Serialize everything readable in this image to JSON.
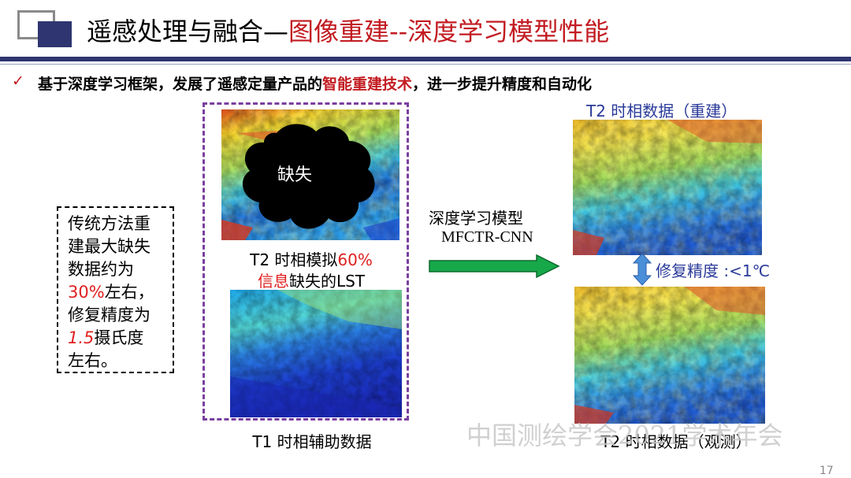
{
  "header": {
    "title_part1": "遥感处理与融合—",
    "title_part2": "图像重建--深度学习模型性能",
    "accent_color": "#c21b21",
    "bar_color": "#2e3570"
  },
  "bullet": {
    "check_icon": "checkmark-icon",
    "text_before": "基于深度学习框架，发展了遥感定量产品的",
    "text_highlight": "智能重建技术",
    "text_after": "，进一步提升精度和自动化"
  },
  "note": {
    "line1": "传统方法重",
    "line2": "建最大缺失",
    "line3": "数据约为",
    "line4_red": "30%",
    "line4_rest": "左右，",
    "line5": "修复精度为",
    "line6_red": "1.5",
    "line6_rest": "摄氏度",
    "line7": "左右。"
  },
  "left_group": {
    "missing_label": "缺失",
    "cap1_part1": "T2 时相模拟",
    "cap1_red": "60%",
    "cap2_red": "信息",
    "cap2_rest": "缺失的LST",
    "cap_bottom": "T1 时相辅助数据"
  },
  "middle": {
    "label1": "深度学习模型",
    "label2": "MFCTR-CNN",
    "arrow_icon": "right-arrow-icon",
    "arrow_color": "#17a84a"
  },
  "right": {
    "top_caption": "T2 时相数据（重建）",
    "accuracy_label": "修复精度 :<1℃",
    "bottom_caption": "T2 时相数据（观测）",
    "double_arrow_icon": "up-down-arrow-icon"
  },
  "watermark": "中国测绘学会2021学术年会",
  "page_number": "17"
}
